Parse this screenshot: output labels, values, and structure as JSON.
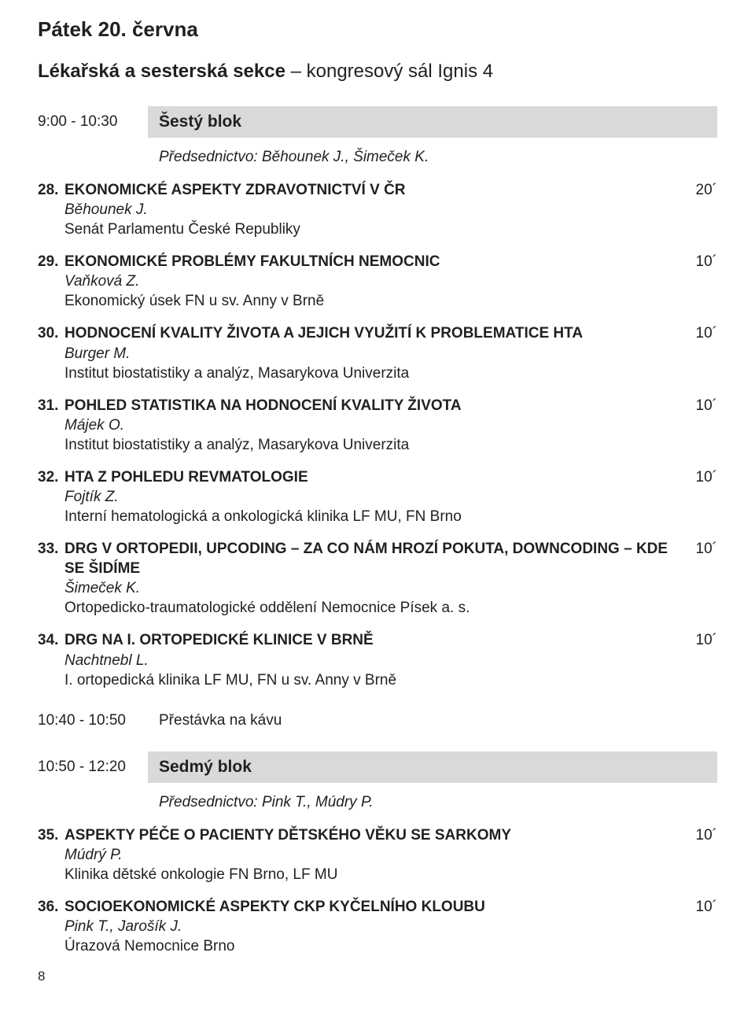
{
  "colors": {
    "text": "#221f20",
    "block_bg": "#d7d9da",
    "page_bg": "#ffffff"
  },
  "fonts": {
    "day_heading_size": 26,
    "section_heading_size": 24,
    "block_title_size": 21,
    "body_size": 19,
    "page_num_size": 17
  },
  "day_heading": "Pátek 20. června",
  "section_heading_bold": "Lékařská a sesterská sekce",
  "section_heading_rest": " – kongresový sál Ignis 4",
  "block1": {
    "time": "9:00 - 10:30",
    "title": "Šestý blok",
    "chair": "Předsednictvo: Běhounek J., Šimeček K."
  },
  "talks1": [
    {
      "num": "28.",
      "title": "EKONOMICKÉ ASPEKTY ZDRAVOTNICTVÍ V ČR",
      "duration": "20´",
      "author": "Běhounek J.",
      "affiliation": "Senát Parlamentu České Republiky"
    },
    {
      "num": "29.",
      "title": "EKONOMICKÉ PROBLÉMY FAKULTNÍCH NEMOCNIC",
      "duration": "10´",
      "author": "Vaňková Z.",
      "affiliation": "Ekonomický úsek FN u sv. Anny v Brně"
    },
    {
      "num": "30.",
      "title": "HODNOCENÍ KVALITY ŽIVOTA A JEJICH VYUŽITÍ K PROBLEMATICE HTA",
      "duration": "10´",
      "author": "Burger M.",
      "affiliation": "Institut biostatistiky a analýz, Masarykova Univerzita"
    },
    {
      "num": "31.",
      "title": "POHLED STATISTIKA NA HODNOCENÍ KVALITY ŽIVOTA",
      "duration": "10´",
      "author": "Májek O.",
      "affiliation": "Institut biostatistiky a analýz, Masarykova Univerzita"
    },
    {
      "num": "32.",
      "title": "HTA Z POHLEDU REVMATOLOGIE",
      "duration": "10´",
      "author": "Fojtík Z.",
      "affiliation": "Interní hematologická a onkologická klinika LF MU, FN Brno"
    },
    {
      "num": "33.",
      "title": "DRG V ORTOPEDII, UPCODING – ZA CO NÁM HROZÍ POKUTA, DOWNCODING – KDE SE ŠIDÍME",
      "duration": "10´",
      "author": "Šimeček K.",
      "affiliation": "Ortopedicko-traumatologické oddělení Nemocnice Písek a. s."
    },
    {
      "num": "34.",
      "title": "DRG NA I. ORTOPEDICKÉ KLINICE V BRNĚ",
      "duration": "10´",
      "author": "Nachtnebl L.",
      "affiliation": "I. ortopedická klinika LF MU, FN u sv. Anny v Brně"
    }
  ],
  "break1": {
    "time": "10:40 - 10:50",
    "label": "Přestávka na kávu"
  },
  "block2": {
    "time": "10:50 - 12:20",
    "title": "Sedmý blok",
    "chair": "Předsednictvo: Pink T., Múdry P."
  },
  "talks2": [
    {
      "num": "35.",
      "title": "ASPEKTY PÉČE O PACIENTY DĚTSKÉHO VĚKU SE SARKOMY",
      "duration": "10´",
      "author": "Múdrý P.",
      "affiliation": "Klinika dětské onkologie FN Brno, LF MU"
    },
    {
      "num": "36.",
      "title": "SOCIOEKONOMICKÉ ASPEKTY CKP KYČELNÍHO KLOUBU",
      "duration": "10´",
      "author": "Pink T., Jarošík J.",
      "affiliation": "Úrazová Nemocnice Brno"
    }
  ],
  "page_number": "8"
}
